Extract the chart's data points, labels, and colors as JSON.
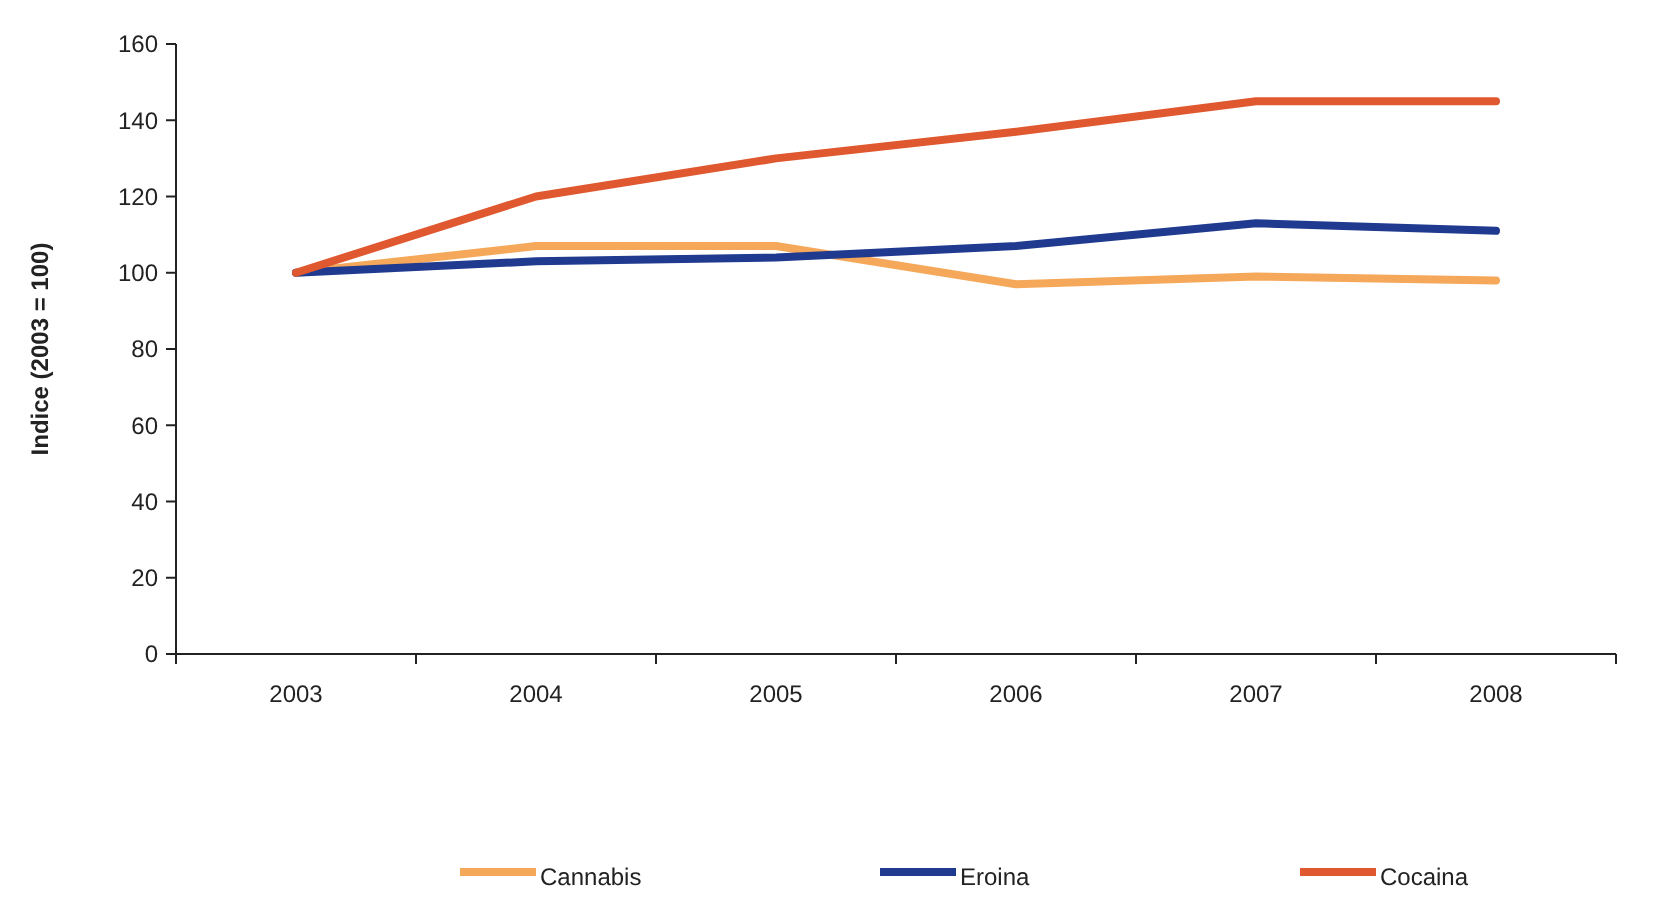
{
  "chart_data": {
    "type": "line",
    "ylabel": "Indice (2003 = 100)",
    "categories": [
      "2003",
      "2004",
      "2005",
      "2006",
      "2007",
      "2008"
    ],
    "ylim": [
      0,
      160
    ],
    "yticks": [
      0,
      20,
      40,
      60,
      80,
      100,
      120,
      140,
      160
    ],
    "grid": false,
    "legend": "bottom",
    "marker": "none",
    "line_style": "solid",
    "series": [
      {
        "name": "Cannabis",
        "color": "#f5a85a",
        "values": [
          100,
          107,
          107,
          97,
          99,
          98
        ]
      },
      {
        "name": "Eroina",
        "color": "#1f3a8f",
        "values": [
          100,
          103,
          104,
          107,
          113,
          111
        ]
      },
      {
        "name": "Cocaina",
        "color": "#e0582f",
        "values": [
          100,
          120,
          130,
          137,
          145,
          145
        ]
      }
    ]
  }
}
